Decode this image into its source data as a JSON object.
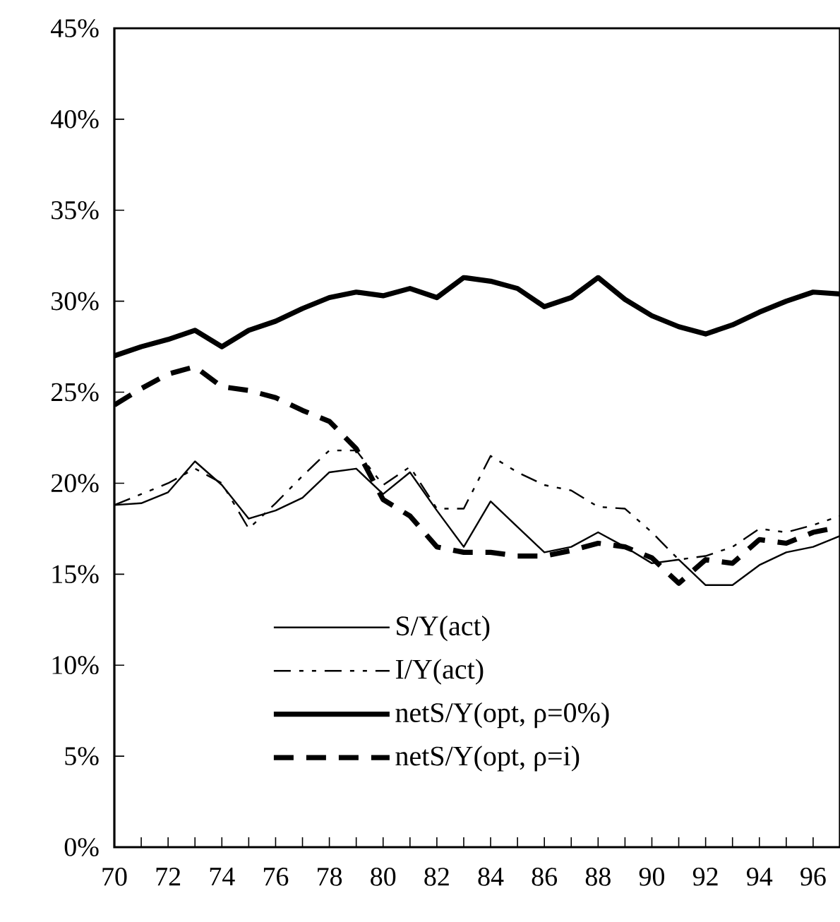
{
  "chart_data": {
    "type": "line",
    "x": [
      70,
      71,
      72,
      73,
      74,
      75,
      76,
      77,
      78,
      79,
      80,
      81,
      82,
      83,
      84,
      85,
      86,
      87,
      88,
      89,
      90,
      91,
      92,
      93,
      94,
      95,
      96,
      97
    ],
    "series": [
      {
        "name": "S/Y(act)",
        "color": "#000000",
        "line_style": "solid",
        "values": [
          18.8,
          18.9,
          19.5,
          21.2,
          19.9,
          18.05,
          18.5,
          19.2,
          20.6,
          20.8,
          19.4,
          20.6,
          18.5,
          16.5,
          19.0,
          17.6,
          16.2,
          16.5,
          17.3,
          16.5,
          15.6,
          15.8,
          14.4,
          14.4,
          15.5,
          16.2,
          16.5,
          17.1
        ]
      },
      {
        "name": "I/Y(act)",
        "color": "#000000",
        "line_style": "dashdot",
        "values": [
          18.8,
          19.4,
          20.0,
          20.8,
          20.0,
          17.5,
          18.9,
          20.4,
          21.8,
          21.8,
          19.9,
          20.9,
          18.6,
          18.6,
          21.5,
          20.6,
          19.9,
          19.6,
          18.7,
          18.6,
          17.3,
          15.8,
          16.0,
          16.5,
          17.5,
          17.3,
          17.7,
          18.2
        ]
      },
      {
        "name": "netS/Y(opt, ρ=0%)",
        "color": "#000000",
        "line_style": "solid",
        "values": [
          27.0,
          27.5,
          27.9,
          28.4,
          27.5,
          28.4,
          28.9,
          29.6,
          30.2,
          30.5,
          30.3,
          30.7,
          30.2,
          31.3,
          31.1,
          30.7,
          29.7,
          30.2,
          31.3,
          30.1,
          29.2,
          28.6,
          28.2,
          28.7,
          29.4,
          30.0,
          30.5,
          30.4
        ]
      },
      {
        "name": "netS/Y(opt, ρ=i)",
        "color": "#000000",
        "line_style": "dashed",
        "values": [
          24.3,
          25.2,
          26.0,
          26.4,
          25.3,
          25.1,
          24.7,
          24.0,
          23.4,
          21.9,
          19.1,
          18.2,
          16.5,
          16.2,
          16.2,
          16.0,
          16.0,
          16.3,
          16.7,
          16.5,
          15.9,
          14.5,
          15.8,
          15.6,
          16.9,
          16.7,
          17.3,
          17.6
        ]
      }
    ],
    "xlim": [
      70,
      97
    ],
    "xticks": [
      70,
      {
        "value": 71,
        "label": null
      },
      72,
      {
        "value": 73,
        "label": null
      },
      74,
      {
        "value": 75,
        "label": null
      },
      76,
      {
        "value": 77,
        "label": null
      },
      78,
      {
        "value": 79,
        "label": null
      },
      80,
      {
        "value": 81,
        "label": null
      },
      82,
      {
        "value": 83,
        "label": null
      },
      84,
      {
        "value": 85,
        "label": null
      },
      86,
      {
        "value": 87,
        "label": null
      },
      88,
      {
        "value": 89,
        "label": null
      },
      90,
      {
        "value": 91,
        "label": null
      },
      92,
      {
        "value": 93,
        "label": null
      },
      94,
      {
        "value": 95,
        "label": null
      },
      96
    ],
    "ylim": [
      0,
      45
    ],
    "yticks": [
      {
        "value": 0,
        "label": "0%"
      },
      {
        "value": 5,
        "label": "5%"
      },
      {
        "value": 10,
        "label": "10%"
      },
      {
        "value": 15,
        "label": "15%"
      },
      {
        "value": 20,
        "label": "20%"
      },
      {
        "value": 25,
        "label": "25%"
      },
      {
        "value": 30,
        "label": "30%"
      },
      {
        "value": 35,
        "label": "35%"
      },
      {
        "value": 40,
        "label": "40%"
      },
      {
        "value": 45,
        "label": "45%"
      }
    ],
    "grid": false,
    "legend": "bottom",
    "marker": "none"
  }
}
